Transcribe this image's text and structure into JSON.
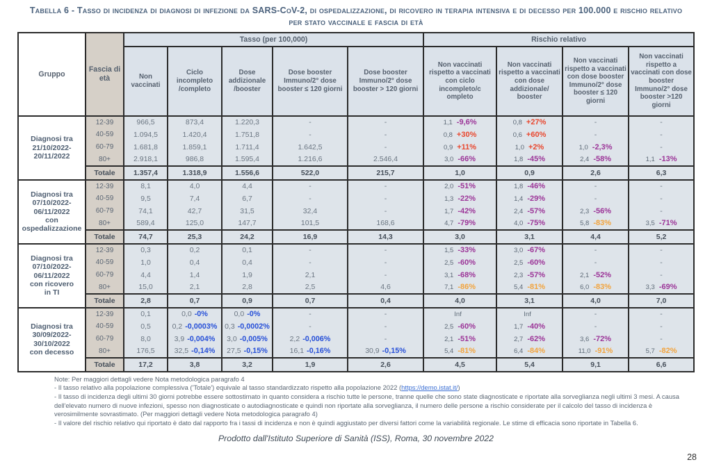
{
  "colors": {
    "red": "#e9472e",
    "purple": "#9c3598",
    "orange": "#f2a33c",
    "blue": "#2750d8",
    "link": "#3b6fd4",
    "title": "#4a617c"
  },
  "title": "Tabella 6 - Tasso di incidenza di diagnosi di infezione da SARS-CoV-2, di ospedalizzazione, di ricovero in terapia intensiva e di decesso per 100.000 e rischio relativo per stato vaccinale e fascia di età",
  "table": {
    "corner": {
      "gruppo": "Gruppo",
      "fascia": "Fascia di età"
    },
    "group_headers": {
      "tasso": "Tasso (per 100,000)",
      "rischio": "Rischio relativo"
    },
    "tasso_columns": [
      "Non vaccinati",
      "Ciclo incompleto /completo",
      "Dose addizionale /booster",
      "Dose booster Immuno/2° dose booster ≤ 120 giorni",
      "Dose booster Immuno/2° dose booster > 120 giorni"
    ],
    "rischio_columns": [
      "Non vaccinati rispetto a vaccinati con ciclo incompleto/c ompleto",
      "Non vaccinati rispetto a vaccinati con dose addizionale/ booster",
      "Non vaccinati rispetto a vaccinati con dose booster Immuno/2° dose booster ≤ 120 giorni",
      "Non vaccinati rispetto a vaccinati con dose booster Immuno/2° dose booster >120 giorni"
    ],
    "totale_label": "Totale",
    "groups": [
      {
        "label_lines": [
          "Diagnosi tra",
          "21/10/2022-",
          "20/11/2022"
        ],
        "rows": [
          {
            "age": "12-39",
            "tasso": [
              "966,5",
              "873,4",
              "1.220,3",
              "-",
              "-"
            ],
            "rischio": [
              {
                "rr": "1,1",
                "pct": "-9,6%",
                "c": "purple"
              },
              {
                "rr": "0,8",
                "pct": "+27%",
                "c": "red"
              },
              "-",
              "-"
            ]
          },
          {
            "age": "40-59",
            "tasso": [
              "1.094,5",
              "1.420,4",
              "1.751,8",
              "-",
              "-"
            ],
            "rischio": [
              {
                "rr": "0,8",
                "pct": "+30%",
                "c": "red"
              },
              {
                "rr": "0,6",
                "pct": "+60%",
                "c": "red"
              },
              "-",
              "-"
            ]
          },
          {
            "age": "60-79",
            "tasso": [
              "1.681,8",
              "1.859,1",
              "1.711,4",
              "1.642,5",
              "-"
            ],
            "rischio": [
              {
                "rr": "0,9",
                "pct": "+11%",
                "c": "red"
              },
              {
                "rr": "1,0",
                "pct": "+2%",
                "c": "red"
              },
              {
                "rr": "1,0",
                "pct": "-2,3%",
                "c": "purple"
              },
              "-"
            ]
          },
          {
            "age": "80+",
            "tasso": [
              "2.918,1",
              "986,8",
              "1.595,4",
              "1.216,6",
              "2.546,4"
            ],
            "rischio": [
              {
                "rr": "3,0",
                "pct": "-66%",
                "c": "purple"
              },
              {
                "rr": "1,8",
                "pct": "-45%",
                "c": "purple"
              },
              {
                "rr": "2,4",
                "pct": "-58%",
                "c": "purple"
              },
              {
                "rr": "1,1",
                "pct": "-13%",
                "c": "purple"
              }
            ]
          }
        ],
        "totale": {
          "tasso": [
            "1.357,4",
            "1.318,9",
            "1.556,6",
            "522,0",
            "215,7"
          ],
          "rischio": [
            "1,0",
            "0,9",
            "2,6",
            "6,3"
          ]
        }
      },
      {
        "label_lines": [
          "Diagnosi tra",
          "07/10/2022-",
          "06/11/2022",
          "con",
          "ospedalizzazione"
        ],
        "rows": [
          {
            "age": "12-39",
            "tasso": [
              "8,1",
              "4,0",
              "4,4",
              "-",
              "-"
            ],
            "rischio": [
              {
                "rr": "2,0",
                "pct": "-51%",
                "c": "purple"
              },
              {
                "rr": "1,8",
                "pct": "-46%",
                "c": "purple"
              },
              "-",
              "-"
            ]
          },
          {
            "age": "40-59",
            "tasso": [
              "9,5",
              "7,4",
              "6,7",
              "-",
              "-"
            ],
            "rischio": [
              {
                "rr": "1,3",
                "pct": "-22%",
                "c": "purple"
              },
              {
                "rr": "1,4",
                "pct": "-29%",
                "c": "purple"
              },
              "-",
              "-"
            ]
          },
          {
            "age": "60-79",
            "tasso": [
              "74,1",
              "42,7",
              "31,5",
              "32,4",
              "-"
            ],
            "rischio": [
              {
                "rr": "1,7",
                "pct": "-42%",
                "c": "purple"
              },
              {
                "rr": "2,4",
                "pct": "-57%",
                "c": "purple"
              },
              {
                "rr": "2,3",
                "pct": "-56%",
                "c": "purple"
              },
              "-"
            ]
          },
          {
            "age": "80+",
            "tasso": [
              "589,4",
              "125,0",
              "147,7",
              "101,5",
              "168,6"
            ],
            "rischio": [
              {
                "rr": "4,7",
                "pct": "-79%",
                "c": "purple"
              },
              {
                "rr": "4,0",
                "pct": "-75%",
                "c": "purple"
              },
              {
                "rr": "5,8",
                "pct": "-83%",
                "c": "orange"
              },
              {
                "rr": "3,5",
                "pct": "-71%",
                "c": "purple"
              }
            ]
          }
        ],
        "totale": {
          "tasso": [
            "74,7",
            "25,3",
            "24,2",
            "16,9",
            "14,3"
          ],
          "rischio": [
            "3,0",
            "3,1",
            "4,4",
            "5,2"
          ]
        }
      },
      {
        "label_lines": [
          "Diagnosi tra",
          "07/10/2022-",
          "06/11/2022",
          "con ricovero",
          "in TI"
        ],
        "rows": [
          {
            "age": "12-39",
            "tasso": [
              "0,3",
              "0,2",
              "0,1",
              "-",
              "-"
            ],
            "rischio": [
              {
                "rr": "1,5",
                "pct": "-33%",
                "c": "purple"
              },
              {
                "rr": "3,0",
                "pct": "-67%",
                "c": "purple"
              },
              "-",
              "-"
            ]
          },
          {
            "age": "40-59",
            "tasso": [
              "1,0",
              "0,4",
              "0,4",
              "-",
              "-"
            ],
            "rischio": [
              {
                "rr": "2,5",
                "pct": "-60%",
                "c": "purple"
              },
              {
                "rr": "2,5",
                "pct": "-60%",
                "c": "purple"
              },
              "-",
              "-"
            ]
          },
          {
            "age": "60-79",
            "tasso": [
              "4,4",
              "1,4",
              "1,9",
              "2,1",
              "-"
            ],
            "rischio": [
              {
                "rr": "3,1",
                "pct": "-68%",
                "c": "purple"
              },
              {
                "rr": "2,3",
                "pct": "-57%",
                "c": "purple"
              },
              {
                "rr": "2,1",
                "pct": "-52%",
                "c": "purple"
              },
              "-"
            ]
          },
          {
            "age": "80+",
            "tasso": [
              "15,0",
              "2,1",
              "2,8",
              "2,5",
              "4,6"
            ],
            "rischio": [
              {
                "rr": "7,1",
                "pct": "-86%",
                "c": "orange"
              },
              {
                "rr": "5,4",
                "pct": "-81%",
                "c": "orange"
              },
              {
                "rr": "6,0",
                "pct": "-83%",
                "c": "orange"
              },
              {
                "rr": "3,3",
                "pct": "-69%",
                "c": "purple"
              }
            ]
          }
        ],
        "totale": {
          "tasso": [
            "2,8",
            "0,7",
            "0,9",
            "0,7",
            "0,4"
          ],
          "rischio": [
            "4,0",
            "3,1",
            "4,0",
            "7,0"
          ]
        }
      },
      {
        "label_lines": [
          "Diagnosi tra",
          "30/09/2022-",
          "30/10/2022",
          "con decesso"
        ],
        "rows": [
          {
            "age": "12-39",
            "tasso": [
              "0,1",
              {
                "v": "0,0",
                "ann": "-0%"
              },
              {
                "v": "0,0",
                "ann": "-0%"
              },
              "-",
              "-"
            ],
            "rischio": [
              {
                "rr": "Inf",
                "pct": "",
                "c": ""
              },
              {
                "rr": "Inf",
                "pct": "",
                "c": ""
              },
              "-",
              "-"
            ]
          },
          {
            "age": "40-59",
            "tasso": [
              "0,5",
              {
                "v": "0,2",
                "ann": "-0,0003%"
              },
              {
                "v": "0,3",
                "ann": "-0,0002%"
              },
              "-",
              "-"
            ],
            "rischio": [
              {
                "rr": "2,5",
                "pct": "-60%",
                "c": "purple"
              },
              {
                "rr": "1,7",
                "pct": "-40%",
                "c": "purple"
              },
              "-",
              "-"
            ]
          },
          {
            "age": "60-79",
            "tasso": [
              "8,0",
              {
                "v": "3,9",
                "ann": "-0,004%"
              },
              {
                "v": "3,0",
                "ann": "-0,005%"
              },
              {
                "v": "2,2",
                "ann": "-0,006%"
              },
              "-"
            ],
            "rischio": [
              {
                "rr": "2,1",
                "pct": "-51%",
                "c": "purple"
              },
              {
                "rr": "2,7",
                "pct": "-62%",
                "c": "purple"
              },
              {
                "rr": "3,6",
                "pct": "-72%",
                "c": "purple"
              },
              "-"
            ]
          },
          {
            "age": "80+",
            "tasso": [
              "176,5",
              {
                "v": "32,5",
                "ann": "-0,14%"
              },
              {
                "v": "27,5",
                "ann": "-0,15%"
              },
              {
                "v": "16,1",
                "ann": "-0,16%"
              },
              {
                "v": "30,9",
                "ann": "-0,15%"
              }
            ],
            "rischio": [
              {
                "rr": "5,4",
                "pct": "-81%",
                "c": "orange"
              },
              {
                "rr": "6,4",
                "pct": "-84%",
                "c": "orange"
              },
              {
                "rr": "11,0",
                "pct": "-91%",
                "c": "orange"
              },
              {
                "rr": "5,7",
                "pct": "-82%",
                "c": "orange"
              }
            ]
          }
        ],
        "totale": {
          "tasso": [
            "17,2",
            "3,8",
            "3,2",
            "1,9",
            "2,6"
          ],
          "rischio": [
            "4,5",
            "5,4",
            "9,1",
            "6,6"
          ]
        }
      }
    ]
  },
  "notes": {
    "header": "Note: Per maggiori dettagli vedere Nota metodologica paragrafo 4",
    "item1_pre": "- Il tasso relativo alla popolazione complessiva ('Totale') equivale al tasso standardizzato rispetto alla popolazione 2022 (",
    "item1_url": "https://demo.istat.it/",
    "item1_post": ")",
    "item2": "- Il tasso di incidenza degli ultimi 30 giorni potrebbe essere sottostimato in quanto considera a rischio tutte le persone, tranne quelle che sono state diagnosticate e riportate alla sorveglianza negli ultimi 3 mesi. A causa dell'elevato numero di nuove infezioni, spesso non diagnosticate o autodiagnosticate e quindi non riportate alla sorveglianza, il numero delle persone a rischio considerate per il calcolo del tasso di incidenza è verosimilmente sovrastimato. (Per maggiori dettagli vedere Nota metodologica paragrafo 4)",
    "item3": "- Il valore del rischio relativo qui riportato è dato dal rapporto fra i tassi di incidenza e non è quindi aggiustato per diversi fattori come la variabilità regionale. Le stime di efficacia sono riportate in Tabella 6."
  },
  "footer": {
    "text": "Prodotto dall'Istituto Superiore di Sanità (ISS), Roma, 30 novembre 2022",
    "page": "28"
  }
}
